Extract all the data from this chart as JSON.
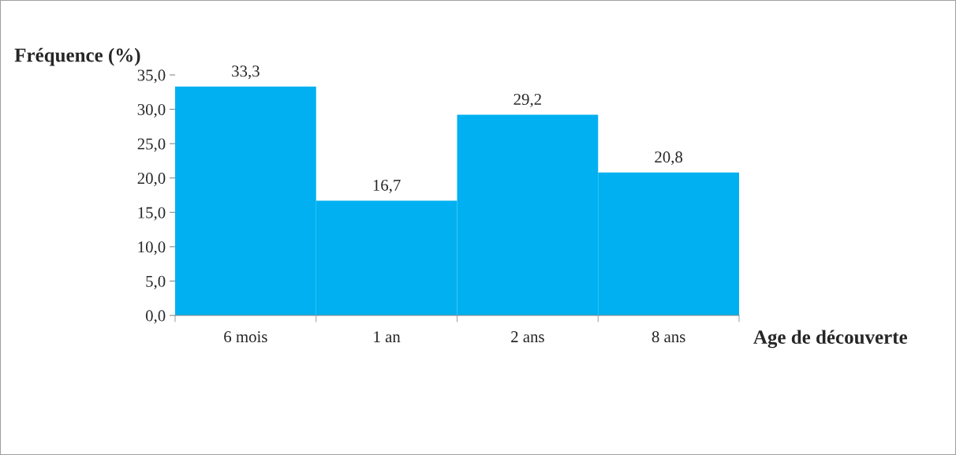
{
  "chart_data": {
    "type": "bar",
    "categories": [
      "6 mois",
      "1 an",
      "2 ans",
      "8 ans"
    ],
    "values": [
      33.3,
      16.7,
      29.2,
      20.8
    ],
    "value_labels": [
      "33,3",
      "16,7",
      "29,2",
      "20,8"
    ],
    "color": "#00b0f0",
    "xlabel": "Age de découverte",
    "ylabel": "Fréquence (%)",
    "ylim": [
      0,
      35
    ],
    "yticks": [
      {
        "value": 0,
        "label": "0,0"
      },
      {
        "value": 5,
        "label": "5,0"
      },
      {
        "value": 10,
        "label": "10,0"
      },
      {
        "value": 15,
        "label": "15,0"
      },
      {
        "value": 20,
        "label": "20,0"
      },
      {
        "value": 25,
        "label": "25,0"
      },
      {
        "value": 30,
        "label": "30,0"
      },
      {
        "value": 35,
        "label": "35,0"
      }
    ],
    "grid": false,
    "legend": false
  }
}
